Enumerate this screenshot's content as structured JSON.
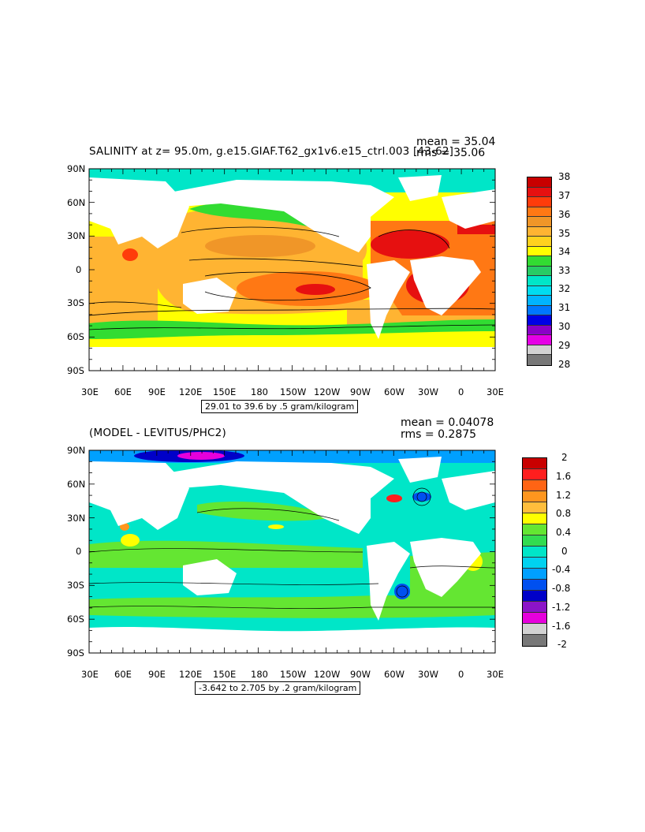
{
  "top_panel": {
    "title": "SALINITY at z=  95.0m, g.e15.GIAF.T62_gx1v6.e15_ctrl.003  [43-62]",
    "mean_text": "mean = 35.04",
    "rms_text": "rms = 35.06",
    "range_text": "29.01 to 39.6 by .5 gram/kilogram",
    "colorbar": {
      "labels": [
        "38",
        "37",
        "36",
        "35",
        "34",
        "33",
        "32",
        "31",
        "30",
        "29",
        "28"
      ],
      "colors": [
        "#c80000",
        "#e61010",
        "#ff3c0a",
        "#ff7814",
        "#f09628",
        "#ffb432",
        "#ffd21e",
        "#ffff00",
        "#32dc32",
        "#28cc64",
        "#00e6c8",
        "#00dcf0",
        "#00b4ff",
        "#0078ff",
        "#0000e6",
        "#8c00c8",
        "#e600e6",
        "#d2d2d2",
        "#787878"
      ]
    }
  },
  "bottom_panel": {
    "title": "(MODEL - LEVITUS/PHC2)",
    "mean_text": "mean = 0.04078",
    "rms_text": "rms = 0.2875",
    "range_text": "-3.642 to 2.705 by .2 gram/kilogram",
    "colorbar": {
      "labels": [
        "2",
        "1.6",
        "1.2",
        "0.8",
        "0.4",
        "0",
        "-0.4",
        "-0.8",
        "-1.2",
        "-1.6",
        "-2"
      ],
      "colors": [
        "#c80000",
        "#ff1e1e",
        "#ff6414",
        "#ff961e",
        "#ffbe3c",
        "#ffff00",
        "#64e632",
        "#32dc50",
        "#00e6c8",
        "#00d2f0",
        "#00a0ff",
        "#0050f0",
        "#0000c8",
        "#8c14c8",
        "#e600dc",
        "#d2d2d2",
        "#787878"
      ]
    }
  },
  "axes": {
    "lat_labels": [
      "90N",
      "60N",
      "30N",
      "0",
      "30S",
      "60S",
      "90S"
    ],
    "lon_labels": [
      "30E",
      "60E",
      "90E",
      "120E",
      "150E",
      "180",
      "150W",
      "120W",
      "90W",
      "60W",
      "30W",
      "0",
      "30E"
    ]
  },
  "legend_colors": {
    "land": "#ffffff",
    "top_background_ocean": "#ffb432",
    "bottom_background_ocean": "#00e6c8"
  }
}
